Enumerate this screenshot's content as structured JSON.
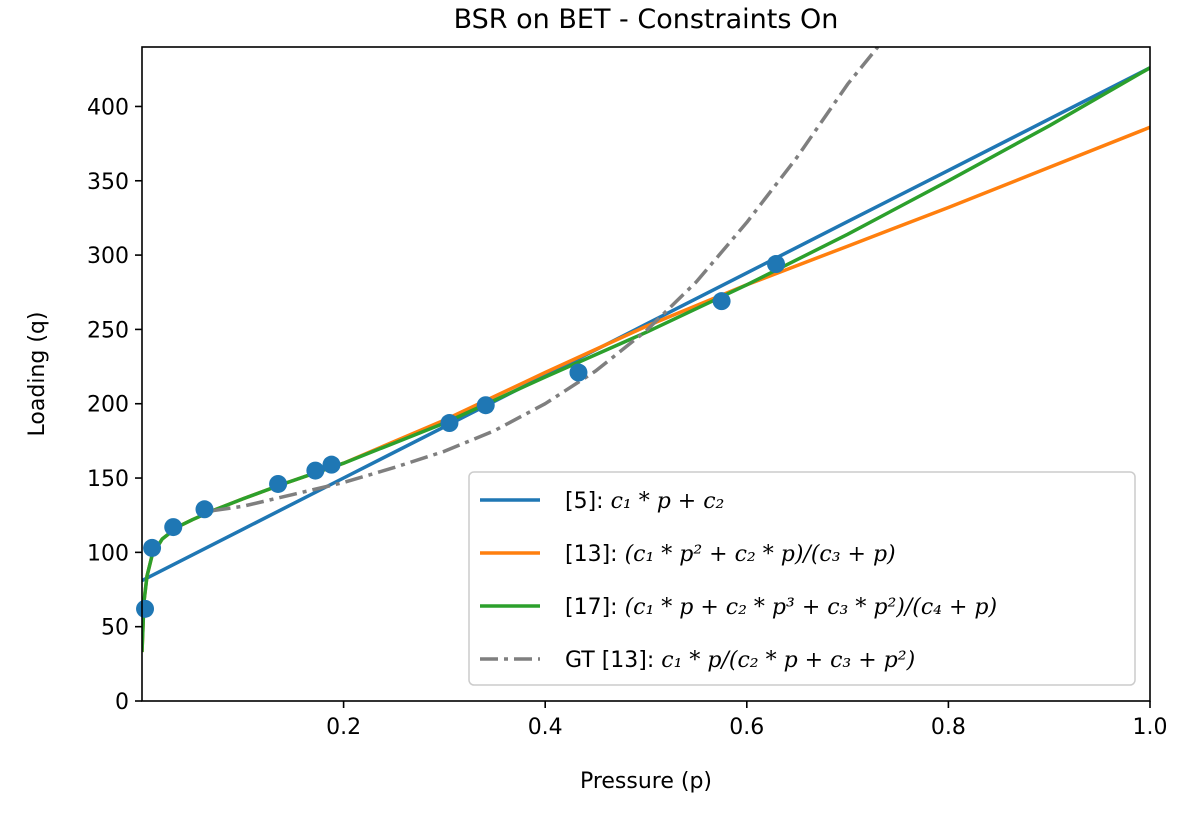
{
  "chart_data": {
    "type": "line",
    "title": "BSR on BET - Constraints On",
    "xlabel": "Pressure (p)",
    "ylabel": "Loading (q)",
    "xlim": [
      0.0,
      1.0
    ],
    "ylim": [
      0,
      440
    ],
    "x_ticks": [
      0.2,
      0.4,
      0.6,
      0.8,
      1.0
    ],
    "x_tick_labels": [
      "0.2",
      "0.4",
      "0.6",
      "0.8",
      "1.0"
    ],
    "y_ticks": [
      0,
      50,
      100,
      150,
      200,
      250,
      300,
      350,
      400
    ],
    "y_tick_labels": [
      "0",
      "50",
      "100",
      "150",
      "200",
      "250",
      "300",
      "350",
      "400"
    ],
    "grid": false,
    "legend_position": "lower-right",
    "points": {
      "color": "#1f77b4",
      "x": [
        0.003,
        0.01,
        0.031,
        0.062,
        0.135,
        0.172,
        0.188,
        0.305,
        0.341,
        0.433,
        0.575,
        0.629
      ],
      "y": [
        62,
        103,
        117,
        129,
        146,
        155,
        159,
        187,
        199,
        221,
        269,
        294
      ]
    },
    "series": [
      {
        "name": "[5]: c₁ * p + c₂",
        "color": "#1f77b4",
        "style": "solid",
        "x": [
          0.0,
          0.1,
          0.2,
          0.3,
          0.4,
          0.5,
          0.6,
          0.7,
          0.8,
          0.9,
          1.0
        ],
        "y": [
          81,
          115.5,
          150,
          184.5,
          219,
          253.5,
          288,
          322.5,
          357,
          391.5,
          426
        ]
      },
      {
        "name": "[13]: (c₁ * p² + c₂ * p)/(c₃ + p)",
        "color": "#ff7f0e",
        "style": "solid",
        "x": [
          0.0,
          0.002,
          0.005,
          0.01,
          0.02,
          0.035,
          0.05,
          0.07,
          0.1,
          0.14,
          0.2,
          0.3,
          0.4,
          0.5,
          0.6,
          0.7,
          0.8,
          0.9,
          1.0
        ],
        "y": [
          33,
          67,
          84,
          98,
          109,
          117,
          122,
          128,
          136,
          146,
          160,
          189,
          221,
          252,
          280,
          306,
          332,
          359,
          386
        ]
      },
      {
        "name": "[17]: (c₁ * p + c₂ * p³ + c₃ * p²)/(c₄ + p)",
        "color": "#2ca02c",
        "style": "solid",
        "x": [
          0.0,
          0.002,
          0.005,
          0.01,
          0.02,
          0.035,
          0.05,
          0.07,
          0.1,
          0.14,
          0.2,
          0.3,
          0.4,
          0.5,
          0.6,
          0.7,
          0.8,
          0.9,
          1.0
        ],
        "y": [
          33,
          67,
          84,
          98,
          109,
          117,
          122,
          128,
          136,
          146,
          160,
          187,
          218,
          248,
          280,
          314,
          350,
          387,
          426
        ]
      },
      {
        "name": "GT [13]: c₁ * p/(c₂ * p + c₃ + p²)",
        "color": "#7f7f7f",
        "style": "dashdot",
        "x": [
          0.07,
          0.1,
          0.15,
          0.2,
          0.25,
          0.3,
          0.35,
          0.4,
          0.45,
          0.5,
          0.55,
          0.6,
          0.65,
          0.7,
          0.73
        ],
        "y": [
          128,
          131,
          139,
          147,
          157,
          168,
          182,
          200,
          222,
          249,
          282,
          322,
          366,
          415,
          440
        ]
      }
    ],
    "legend": [
      {
        "label_main": "[5]: ",
        "label_formula": "c₁ * p + c₂"
      },
      {
        "label_main": "[13]: ",
        "label_formula": "(c₁ * p² + c₂ * p)/(c₃ + p)"
      },
      {
        "label_main": "[17]: ",
        "label_formula": "(c₁ * p + c₂ * p³ + c₃ * p²)/(c₄ + p)"
      },
      {
        "label_main": "GT [13]: ",
        "label_formula": "c₁ * p/(c₂ * p + c₃ + p²)"
      }
    ]
  }
}
